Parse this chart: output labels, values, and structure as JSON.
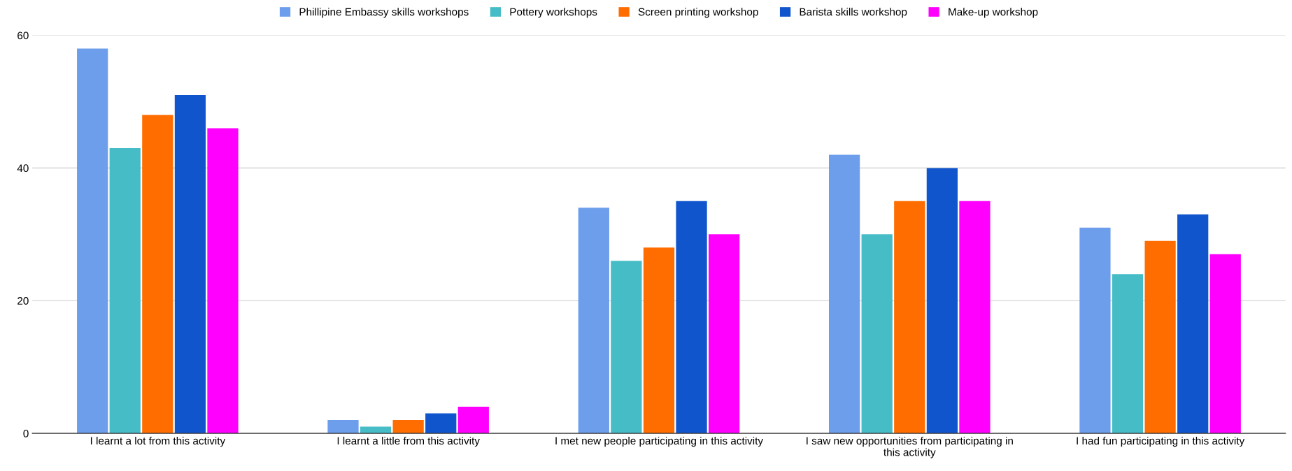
{
  "chart_data": {
    "type": "bar",
    "categories": [
      "I learnt a lot from this activity",
      "I learnt a little from this activity",
      "I met new people participating in this activity",
      "I saw new opportunities from participating in\nthis activity",
      "I had fun participating in this activity"
    ],
    "series": [
      {
        "name": "Phillipine Embassy skills workshops",
        "color": "#6d9eeb",
        "values": [
          58,
          2,
          34,
          42,
          31
        ]
      },
      {
        "name": "Pottery workshops",
        "color": "#46bdc6",
        "values": [
          43,
          1,
          26,
          30,
          24
        ]
      },
      {
        "name": "Screen printing workshop",
        "color": "#ff6d01",
        "values": [
          48,
          2,
          28,
          35,
          29
        ]
      },
      {
        "name": "Barista skills workshop",
        "color": "#1155cc",
        "values": [
          51,
          3,
          35,
          40,
          33
        ]
      },
      {
        "name": "Make-up workshop",
        "color": "#ff00ff",
        "values": [
          46,
          4,
          30,
          35,
          27
        ]
      }
    ],
    "ylim": [
      0,
      60
    ],
    "yticks": [
      0,
      20,
      40,
      60
    ],
    "grid": "y",
    "legend": "top"
  }
}
